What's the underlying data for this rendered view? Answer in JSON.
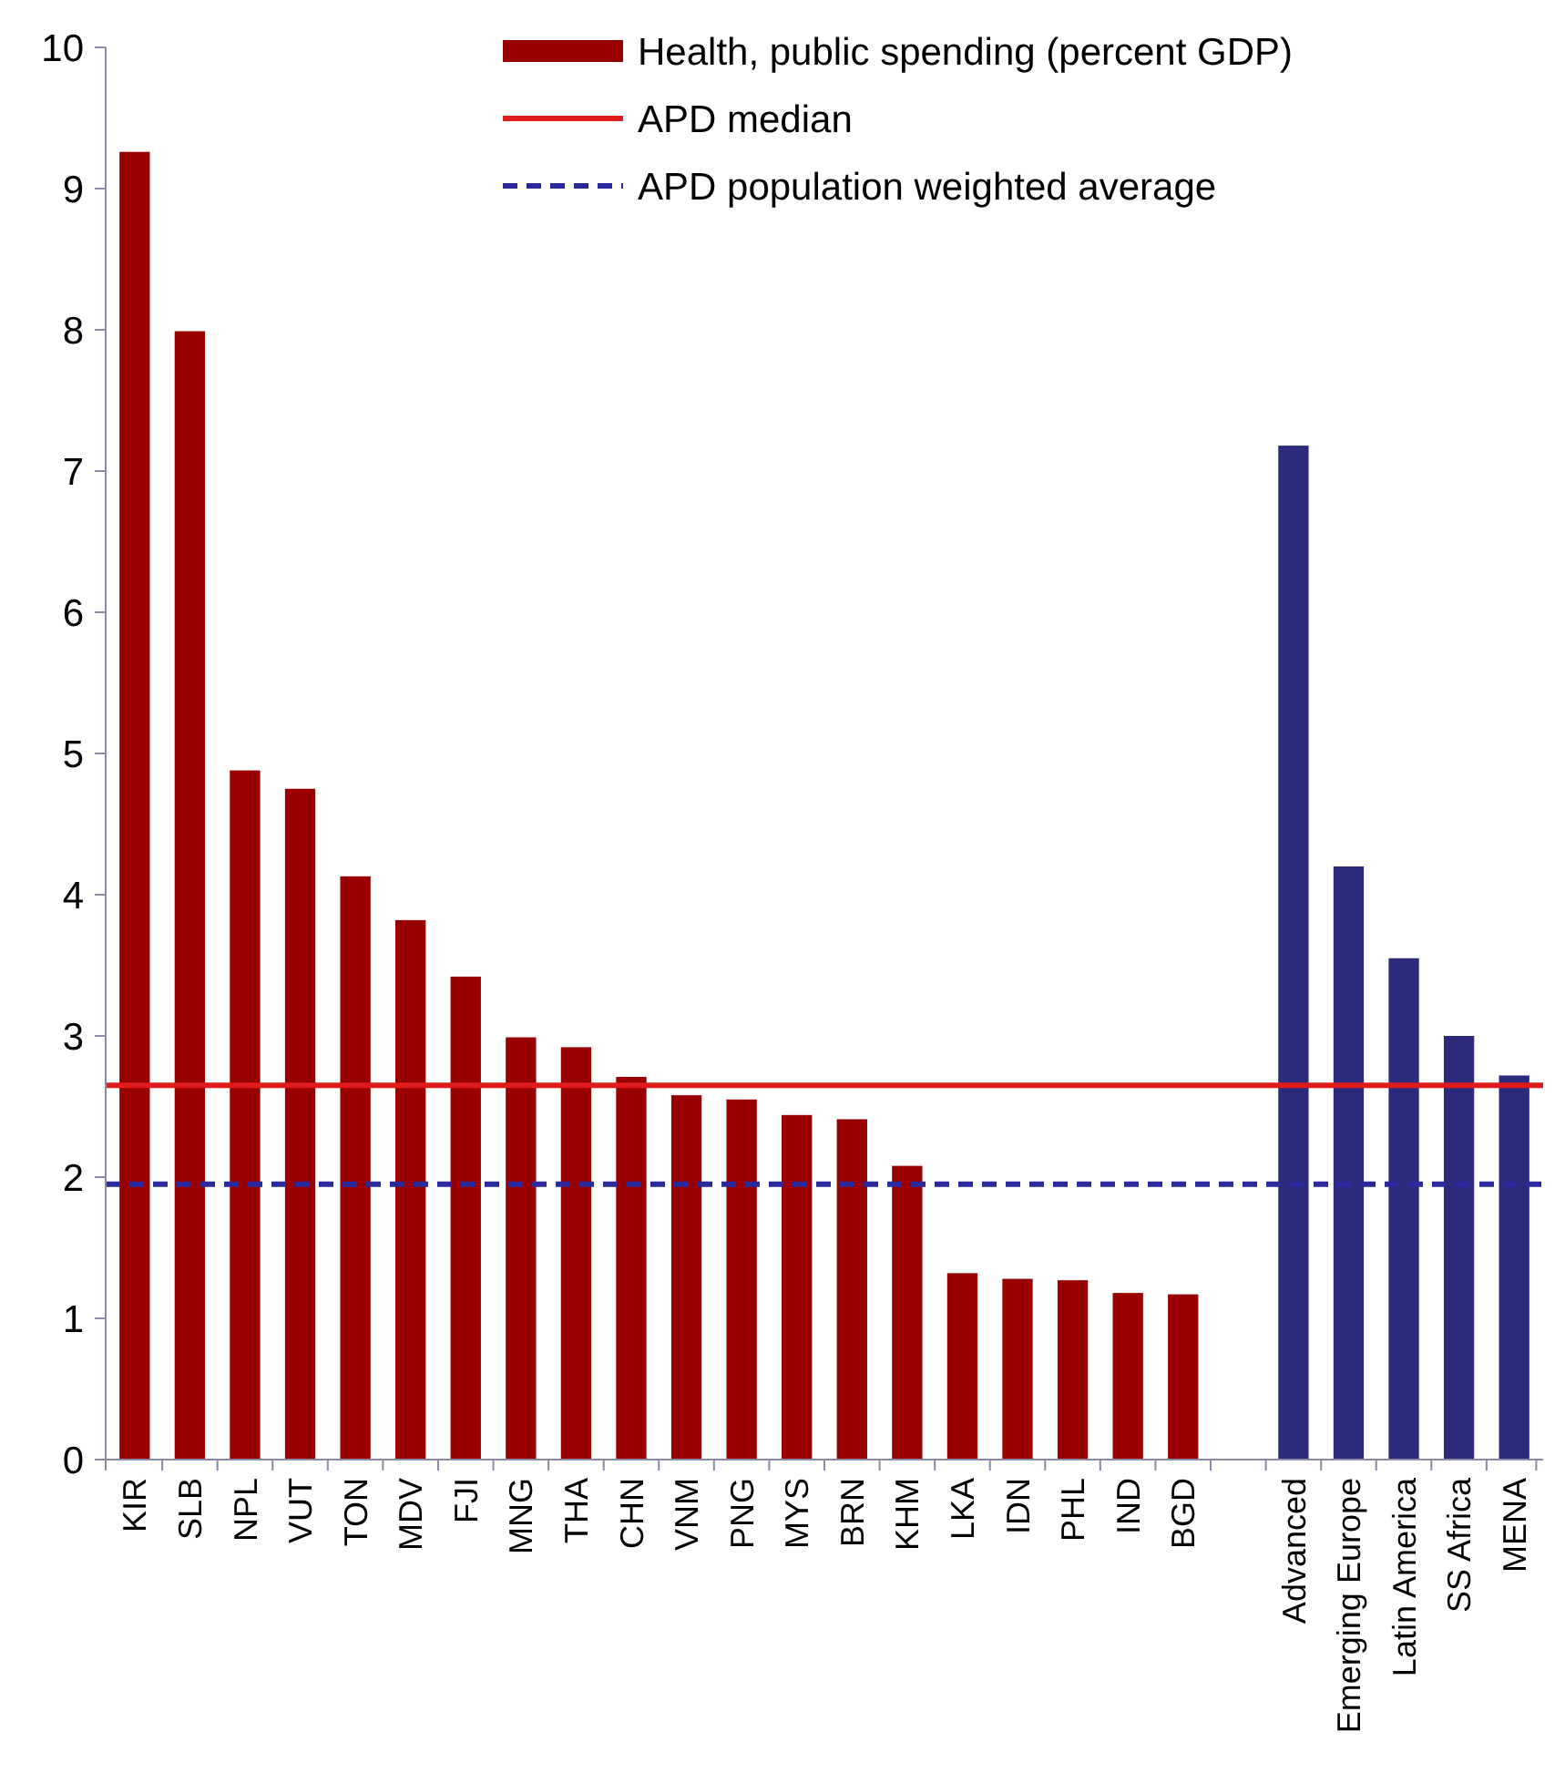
{
  "chart_data": {
    "type": "bar",
    "categories": [
      "KIR",
      "SLB",
      "NPL",
      "VUT",
      "TON",
      "MDV",
      "FJI",
      "MNG",
      "THA",
      "CHN",
      "VNM",
      "PNG",
      "MYS",
      "BRN",
      "KHM",
      "LKA",
      "IDN",
      "PHL",
      "IND",
      "BGD",
      null,
      "Advanced",
      "Emerging Europe",
      "Latin America",
      "SS Africa",
      "MENA"
    ],
    "series": [
      {
        "name": "Health, public spending (percent GDP)",
        "color": "#990000",
        "colors": [
          "#990000",
          "#990000",
          "#990000",
          "#990000",
          "#990000",
          "#990000",
          "#990000",
          "#990000",
          "#990000",
          "#990000",
          "#990000",
          "#990000",
          "#990000",
          "#990000",
          "#990000",
          "#990000",
          "#990000",
          "#990000",
          "#990000",
          "#990000",
          null,
          "#2b2a7c",
          "#2b2a7c",
          "#2b2a7c",
          "#2b2a7c",
          "#2b2a7c"
        ],
        "values": [
          9.26,
          7.99,
          4.88,
          4.75,
          4.13,
          3.82,
          3.42,
          2.99,
          2.92,
          2.71,
          2.58,
          2.55,
          2.44,
          2.41,
          2.08,
          1.32,
          1.28,
          1.27,
          1.18,
          1.17,
          null,
          7.18,
          4.2,
          3.55,
          3.0,
          2.72
        ]
      }
    ],
    "ylim": [
      0,
      10
    ],
    "yticks": [
      0,
      1,
      2,
      3,
      4,
      5,
      6,
      7,
      8,
      9,
      10
    ],
    "ref_lines": [
      {
        "axis": "y",
        "value": 2.65,
        "label": "APD median",
        "color": "#e01b1b",
        "line_style": "solid"
      },
      {
        "axis": "y",
        "value": 1.95,
        "label": "APD population weighted average",
        "color": "#2b2a9c",
        "line_style": "dashed"
      }
    ],
    "legend": "top right",
    "grid": false
  }
}
